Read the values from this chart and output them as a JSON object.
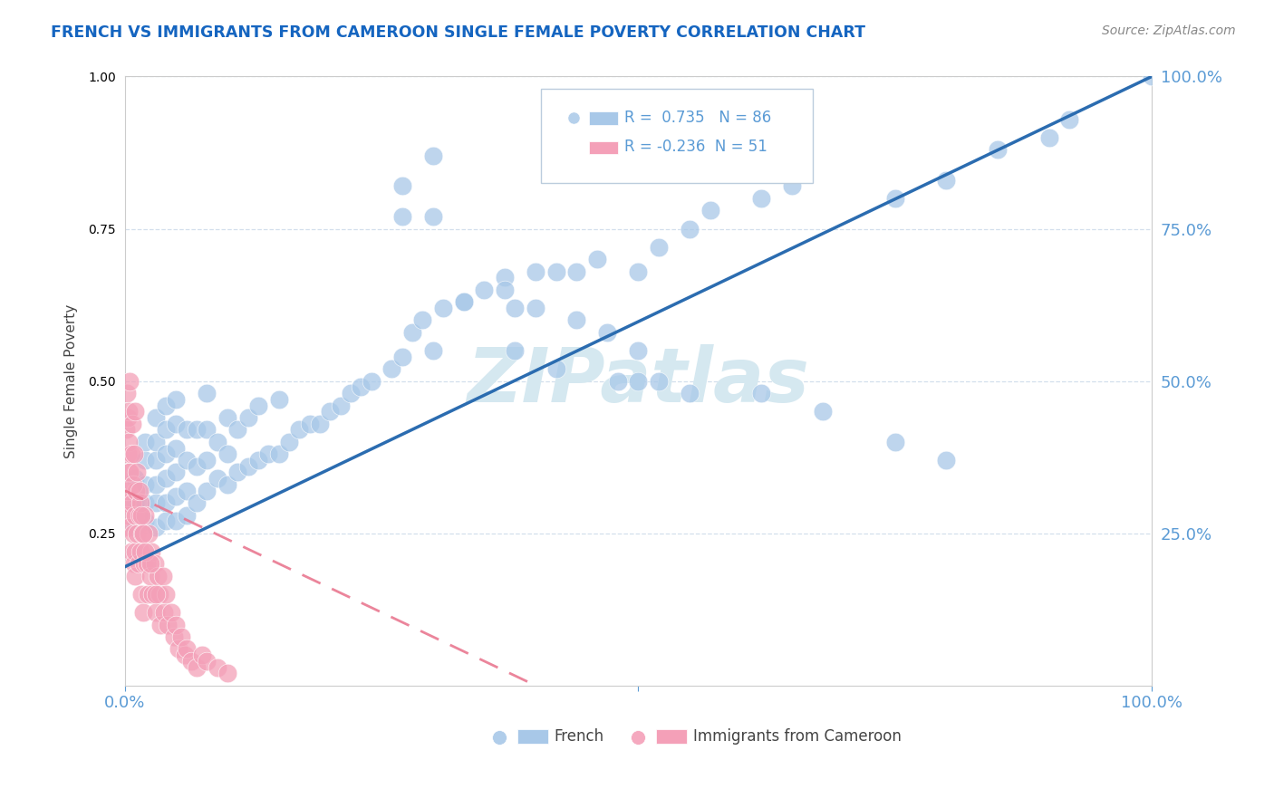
{
  "title": "FRENCH VS IMMIGRANTS FROM CAMEROON SINGLE FEMALE POVERTY CORRELATION CHART",
  "source": "Source: ZipAtlas.com",
  "ylabel": "Single Female Poverty",
  "xlim": [
    0,
    1
  ],
  "ylim": [
    0,
    1
  ],
  "title_color": "#1565C0",
  "tick_color": "#5B9BD5",
  "source_color": "#888888",
  "french_color": "#A8C8E8",
  "cameroon_color": "#F4A0B8",
  "french_line_color": "#2B6CB0",
  "cameroon_line_color": "#E8708A",
  "watermark": "ZIPatlas",
  "watermark_color": "#D5E8F0",
  "legend_label_french": "French",
  "legend_label_cameroon": "Immigrants from Cameroon",
  "french_R": 0.735,
  "french_N": 86,
  "cameroon_R": -0.236,
  "cameroon_N": 51,
  "french_line_x0": 0.0,
  "french_line_y0": 0.195,
  "french_line_x1": 1.0,
  "french_line_y1": 1.0,
  "cameroon_line_x0": 0.0,
  "cameroon_line_x1": 0.25,
  "cameroon_line_y0": 0.32,
  "cameroon_line_y1": 0.12,
  "french_x": [
    0.01,
    0.01,
    0.01,
    0.02,
    0.02,
    0.02,
    0.02,
    0.02,
    0.03,
    0.03,
    0.03,
    0.03,
    0.03,
    0.03,
    0.04,
    0.04,
    0.04,
    0.04,
    0.04,
    0.04,
    0.05,
    0.05,
    0.05,
    0.05,
    0.05,
    0.05,
    0.06,
    0.06,
    0.06,
    0.06,
    0.07,
    0.07,
    0.07,
    0.08,
    0.08,
    0.08,
    0.08,
    0.09,
    0.09,
    0.1,
    0.1,
    0.1,
    0.11,
    0.11,
    0.12,
    0.12,
    0.13,
    0.13,
    0.14,
    0.15,
    0.15,
    0.16,
    0.17,
    0.18,
    0.19,
    0.2,
    0.21,
    0.22,
    0.23,
    0.24,
    0.26,
    0.27,
    0.28,
    0.29,
    0.3,
    0.31,
    0.33,
    0.35,
    0.37,
    0.38,
    0.4,
    0.42,
    0.44,
    0.46,
    0.5,
    0.52,
    0.55,
    0.57,
    0.62,
    0.65,
    0.75,
    0.8,
    0.85,
    0.9,
    0.92,
    1.0
  ],
  "french_y": [
    0.26,
    0.3,
    0.34,
    0.27,
    0.3,
    0.33,
    0.37,
    0.4,
    0.26,
    0.3,
    0.33,
    0.37,
    0.4,
    0.44,
    0.27,
    0.3,
    0.34,
    0.38,
    0.42,
    0.46,
    0.27,
    0.31,
    0.35,
    0.39,
    0.43,
    0.47,
    0.28,
    0.32,
    0.37,
    0.42,
    0.3,
    0.36,
    0.42,
    0.32,
    0.37,
    0.42,
    0.48,
    0.34,
    0.4,
    0.33,
    0.38,
    0.44,
    0.35,
    0.42,
    0.36,
    0.44,
    0.37,
    0.46,
    0.38,
    0.38,
    0.47,
    0.4,
    0.42,
    0.43,
    0.43,
    0.45,
    0.46,
    0.48,
    0.49,
    0.5,
    0.52,
    0.54,
    0.58,
    0.6,
    0.55,
    0.62,
    0.63,
    0.65,
    0.67,
    0.62,
    0.68,
    0.68,
    0.68,
    0.7,
    0.68,
    0.72,
    0.75,
    0.78,
    0.8,
    0.82,
    0.8,
    0.83,
    0.88,
    0.9,
    0.93,
    1.0
  ],
  "french_outliers_x": [
    0.27,
    0.3,
    0.27,
    0.3,
    0.33,
    0.37,
    0.4,
    0.44,
    0.47,
    0.5,
    0.52,
    0.42,
    0.48,
    0.38,
    0.5,
    0.55,
    0.62,
    0.68,
    0.75,
    0.8
  ],
  "french_outliers_y": [
    0.82,
    0.87,
    0.77,
    0.77,
    0.63,
    0.65,
    0.62,
    0.6,
    0.58,
    0.55,
    0.5,
    0.52,
    0.5,
    0.55,
    0.5,
    0.48,
    0.48,
    0.45,
    0.4,
    0.37
  ],
  "cameroon_x": [
    0.001,
    0.002,
    0.003,
    0.004,
    0.005,
    0.006,
    0.007,
    0.008,
    0.009,
    0.01,
    0.01,
    0.01,
    0.011,
    0.012,
    0.013,
    0.014,
    0.015,
    0.015,
    0.016,
    0.017,
    0.018,
    0.019,
    0.02,
    0.021,
    0.022,
    0.023,
    0.025,
    0.026,
    0.027,
    0.029,
    0.03,
    0.032,
    0.034,
    0.035,
    0.037,
    0.038,
    0.04,
    0.042,
    0.045,
    0.048,
    0.05,
    0.052,
    0.055,
    0.058,
    0.06,
    0.065,
    0.07,
    0.075,
    0.08,
    0.09,
    0.1
  ],
  "cameroon_y": [
    0.3,
    0.28,
    0.32,
    0.26,
    0.35,
    0.22,
    0.3,
    0.25,
    0.2,
    0.28,
    0.22,
    0.18,
    0.32,
    0.25,
    0.2,
    0.28,
    0.3,
    0.22,
    0.15,
    0.25,
    0.12,
    0.2,
    0.28,
    0.2,
    0.15,
    0.25,
    0.18,
    0.22,
    0.15,
    0.2,
    0.12,
    0.18,
    0.15,
    0.1,
    0.18,
    0.12,
    0.15,
    0.1,
    0.12,
    0.08,
    0.1,
    0.06,
    0.08,
    0.05,
    0.06,
    0.04,
    0.03,
    0.05,
    0.04,
    0.03,
    0.02
  ],
  "cameroon_outliers_x": [
    0.001,
    0.002,
    0.003,
    0.003,
    0.004,
    0.004,
    0.005,
    0.005,
    0.006,
    0.007,
    0.008,
    0.009,
    0.01,
    0.012,
    0.014,
    0.016,
    0.018,
    0.02,
    0.025,
    0.03
  ],
  "cameroon_outliers_y": [
    0.42,
    0.48,
    0.38,
    0.44,
    0.45,
    0.4,
    0.5,
    0.35,
    0.38,
    0.43,
    0.33,
    0.38,
    0.45,
    0.35,
    0.32,
    0.28,
    0.25,
    0.22,
    0.2,
    0.15
  ]
}
